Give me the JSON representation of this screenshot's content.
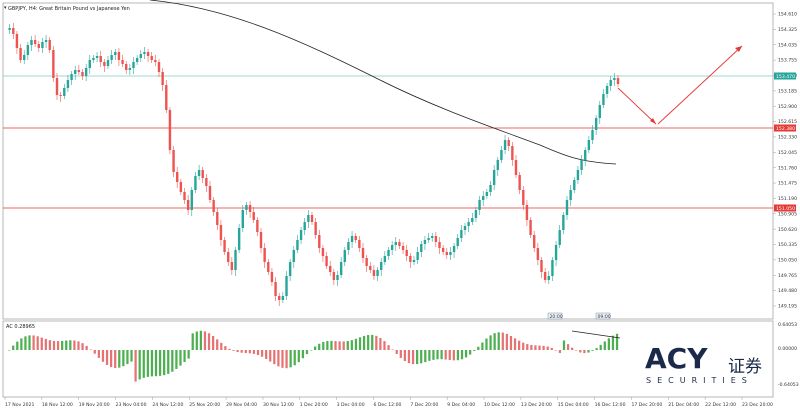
{
  "chart": {
    "title": "GBPJPY, H4:  Great Britain Pound vs Japanese Yen",
    "indicator_label": "AC 0.28965",
    "colors": {
      "bull": "#26a69a",
      "bear": "#ef5350",
      "support": "#e53935",
      "price_line": "#80cbc4",
      "ma": "#222222",
      "arrow": "#e53935"
    },
    "price_ticks": [
      "154.610",
      "154.325",
      "154.035",
      "153.755",
      "153.470",
      "153.185",
      "152.900",
      "152.615",
      "152.330",
      "152.045",
      "151.760",
      "151.475",
      "151.190",
      "150.905",
      "150.620",
      "150.335",
      "150.050",
      "149.765",
      "149.480",
      "149.195"
    ],
    "indicator_ticks": [
      "0.64053",
      "0.00000",
      "-0.64053"
    ],
    "time_ticks": [
      "17 Nov 2021",
      "18 Nov 12:00",
      "19 Nov 20:00",
      "23 Nov 04:00",
      "24 Nov 12:00",
      "25 Nov 20:00",
      "29 Nov 04:00",
      "30 Nov 12:00",
      "1 Dec 20:00",
      "3 Dec 04:00",
      "6 Dec 12:00",
      "7 Dec 20:00",
      "9 Dec 04:00",
      "10 Dec 12:00",
      "13 Dec 20:00",
      "15 Dec 04:00",
      "16 Dec 12:00",
      "17 Dec 20:00",
      "21 Dec 04:00",
      "22 Dec 12:00",
      "23 Dec 20:00"
    ],
    "price_tags": {
      "current": "153.470",
      "resistance": "152.380",
      "support": "151.050"
    },
    "time_tags": [
      "20:00",
      "09:00"
    ]
  },
  "logo": {
    "brand": "ACY",
    "chinese": "证券",
    "subtitle": "SECURITIES"
  }
}
